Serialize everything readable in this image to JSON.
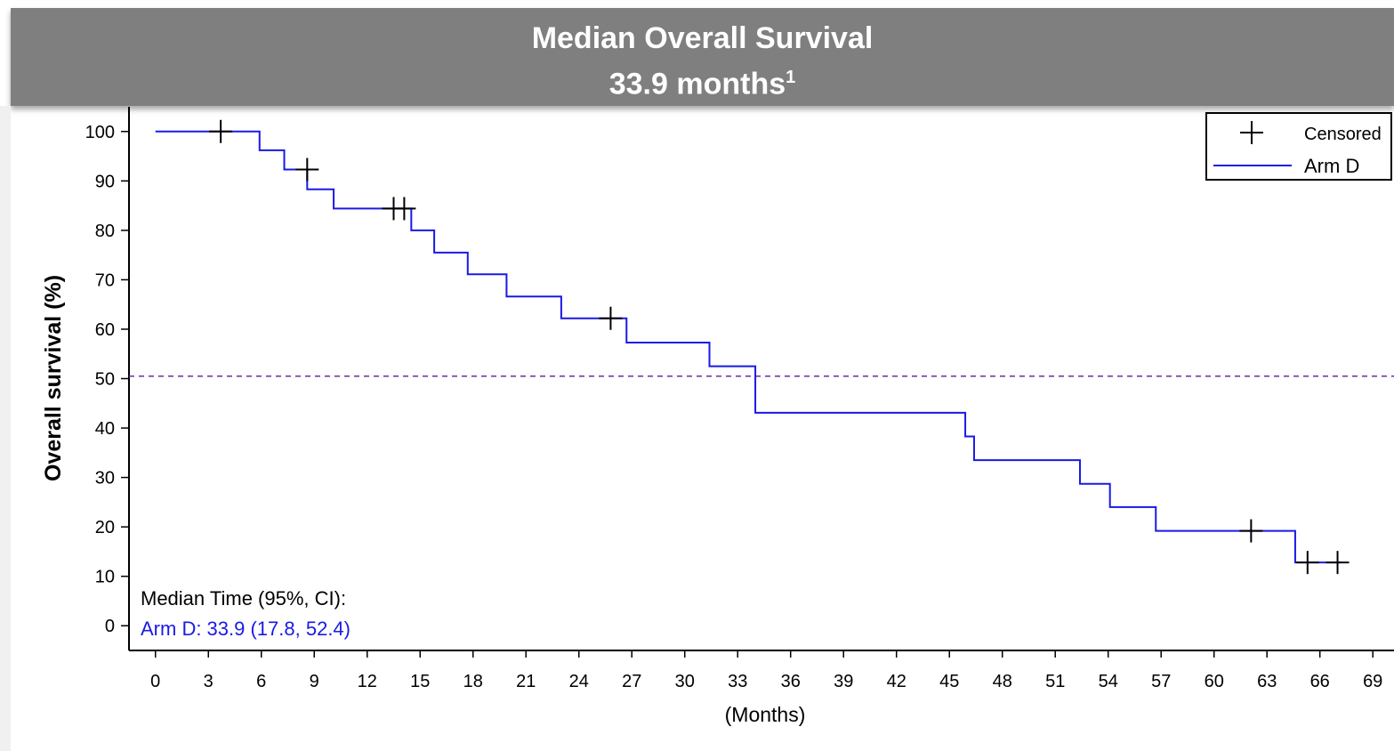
{
  "banner": {
    "title": "Median Overall Survival",
    "subtitle_value": "33.9 months",
    "subtitle_sup": "1"
  },
  "annotation": {
    "label": "Median Time (95%, CI):",
    "value": "Arm D: 33.9 (17.8, 52.4)"
  },
  "legend": {
    "placement": "top-right",
    "censored_label": "Censored",
    "series_label": "Arm D"
  },
  "colors": {
    "series": "#1a1ae6",
    "median_line": "#6a2fa0",
    "censor_mark": "#000000",
    "banner": "#7f7f7f"
  },
  "chart_data": {
    "type": "line",
    "title": "",
    "xlabel": "(Months)",
    "ylabel": "Overall survival (%)",
    "xlim": [
      -1.5,
      70.2
    ],
    "ylim": [
      -5,
      105
    ],
    "xticks": [
      0,
      3,
      6,
      9,
      12,
      15,
      18,
      21,
      24,
      27,
      30,
      33,
      36,
      39,
      42,
      45,
      48,
      51,
      54,
      57,
      60,
      63,
      66,
      69
    ],
    "yticks": [
      0,
      10,
      20,
      30,
      40,
      50,
      60,
      70,
      80,
      90,
      100
    ],
    "grid": false,
    "reference_line_y": 50.5,
    "series": [
      {
        "name": "Arm D",
        "step_x": [
          0,
          5.9,
          7.3,
          8.6,
          10.1,
          14.5,
          15.8,
          17.7,
          19.9,
          23.0,
          26.7,
          31.4,
          34.0,
          45.9,
          46.4,
          52.4,
          54.1,
          56.7,
          64.6,
          67.2
        ],
        "step_y": [
          100,
          96.2,
          92.3,
          88.3,
          84.4,
          80.0,
          75.5,
          71.1,
          66.6,
          62.2,
          57.3,
          52.5,
          43.1,
          38.3,
          33.5,
          28.7,
          24.0,
          19.2,
          12.8,
          12.8
        ]
      }
    ],
    "censored": [
      {
        "x": 3.7,
        "y": 100
      },
      {
        "x": 8.6,
        "y": 92.3
      },
      {
        "x": 13.5,
        "y": 84.4
      },
      {
        "x": 14.1,
        "y": 84.4
      },
      {
        "x": 25.8,
        "y": 62.2
      },
      {
        "x": 62.1,
        "y": 19.2
      },
      {
        "x": 65.3,
        "y": 12.8
      },
      {
        "x": 67.0,
        "y": 12.8
      }
    ]
  }
}
